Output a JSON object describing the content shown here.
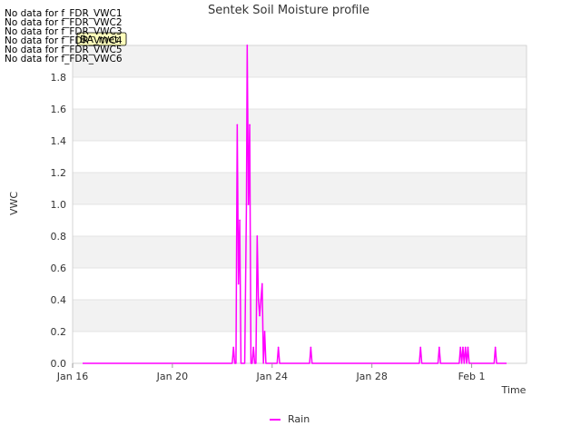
{
  "chart_data": {
    "type": "line",
    "title": "Sentek Soil Moisture profile",
    "xlabel": "Time",
    "ylabel": "VWC",
    "x_unit": "days since Jan 16",
    "xlim": [
      0,
      18.2
    ],
    "ylim": [
      0,
      2.0
    ],
    "x_ticks": [
      {
        "value": 0,
        "label": "Jan 16"
      },
      {
        "value": 4,
        "label": "Jan 20"
      },
      {
        "value": 8,
        "label": "Jan 24"
      },
      {
        "value": 12,
        "label": "Jan 28"
      },
      {
        "value": 16,
        "label": "Feb 1"
      }
    ],
    "y_ticks": [
      {
        "value": 0.0,
        "label": "0.0"
      },
      {
        "value": 0.2,
        "label": "0.2"
      },
      {
        "value": 0.4,
        "label": "0.4"
      },
      {
        "value": 0.6,
        "label": "0.6"
      },
      {
        "value": 0.8,
        "label": "0.8"
      },
      {
        "value": 1.0,
        "label": "1.0"
      },
      {
        "value": 1.2,
        "label": "1.2"
      },
      {
        "value": 1.4,
        "label": "1.4"
      },
      {
        "value": 1.6,
        "label": "1.6"
      },
      {
        "value": 1.8,
        "label": "1.8"
      }
    ],
    "grid": true,
    "legend_position": "bottom-center",
    "series": [
      {
        "name": "Rain",
        "color": "#ff00ff",
        "points": [
          [
            0.4,
            0
          ],
          [
            6.4,
            0
          ],
          [
            6.45,
            0.1
          ],
          [
            6.5,
            0
          ],
          [
            6.55,
            0
          ],
          [
            6.6,
            1.5
          ],
          [
            6.65,
            0.5
          ],
          [
            6.7,
            0.9
          ],
          [
            6.75,
            0
          ],
          [
            6.9,
            0
          ],
          [
            6.97,
            1.0
          ],
          [
            7.0,
            2.0
          ],
          [
            7.05,
            1.0
          ],
          [
            7.1,
            1.5
          ],
          [
            7.15,
            0
          ],
          [
            7.2,
            0
          ],
          [
            7.25,
            0.1
          ],
          [
            7.3,
            0
          ],
          [
            7.35,
            0
          ],
          [
            7.4,
            0.8
          ],
          [
            7.45,
            0.4
          ],
          [
            7.5,
            0.3
          ],
          [
            7.55,
            0.4
          ],
          [
            7.6,
            0.5
          ],
          [
            7.65,
            0
          ],
          [
            7.7,
            0.2
          ],
          [
            7.75,
            0
          ],
          [
            8.2,
            0
          ],
          [
            8.25,
            0.1
          ],
          [
            8.3,
            0
          ],
          [
            9.5,
            0
          ],
          [
            9.55,
            0.1
          ],
          [
            9.6,
            0
          ],
          [
            13.9,
            0
          ],
          [
            13.95,
            0.1
          ],
          [
            14.0,
            0
          ],
          [
            14.65,
            0
          ],
          [
            14.7,
            0.1
          ],
          [
            14.75,
            0
          ],
          [
            15.5,
            0
          ],
          [
            15.55,
            0.1
          ],
          [
            15.6,
            0
          ],
          [
            15.65,
            0.1
          ],
          [
            15.7,
            0
          ],
          [
            15.75,
            0.1
          ],
          [
            15.8,
            0
          ],
          [
            15.85,
            0.1
          ],
          [
            15.9,
            0
          ],
          [
            16.9,
            0
          ],
          [
            16.95,
            0.1
          ],
          [
            17.0,
            0
          ],
          [
            17.4,
            0
          ]
        ]
      }
    ],
    "annotations": {
      "no_data_messages": [
        "No data for f_FDR_VWC1",
        "No data for f_FDR_VWC2",
        "No data for f_FDR_VWC3",
        "No data for f_FDR_VWC4",
        "No data for f_FDR_VWC5",
        "No data for f_FDR_VWC6"
      ],
      "tooltip_label": "BA_met"
    }
  },
  "colors": {
    "band": "#f2f2f2",
    "grid": "#dddddd",
    "axis_text": "#333333",
    "tooltip_bg": "#ffffbb"
  }
}
